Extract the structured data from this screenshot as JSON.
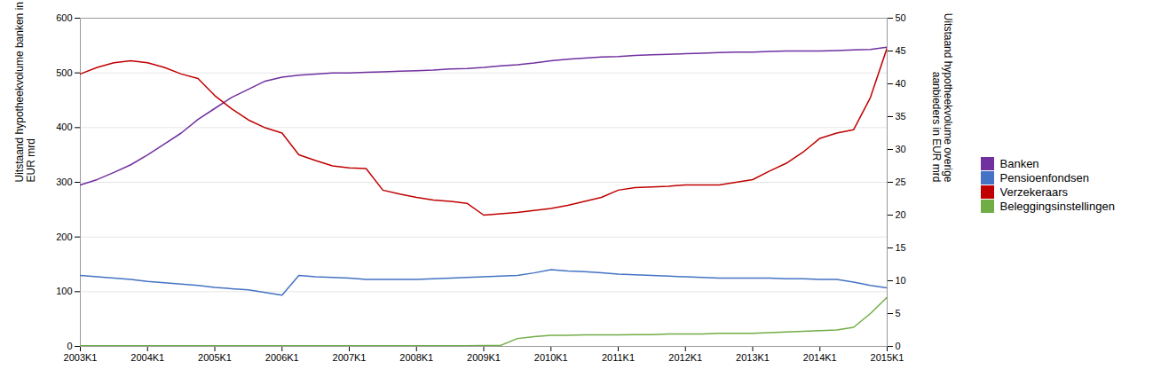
{
  "chart_data": {
    "type": "line",
    "categories": [
      "2003K1",
      null,
      null,
      null,
      "2004K1",
      null,
      null,
      null,
      "2005K1",
      null,
      null,
      null,
      "2006K1",
      null,
      null,
      null,
      "2007K1",
      null,
      null,
      null,
      "2008K1",
      null,
      null,
      null,
      "2009K1",
      null,
      null,
      null,
      "2010K1",
      null,
      null,
      null,
      "2011K1",
      null,
      null,
      null,
      "2012K1",
      null,
      null,
      null,
      "2013K1",
      null,
      null,
      null,
      "2014K1",
      null,
      null,
      null,
      "2015K1"
    ],
    "series": [
      {
        "name": "Banken",
        "color": "#7030A0",
        "values": [
          295,
          305,
          318,
          332,
          350,
          370,
          390,
          415,
          435,
          455,
          470,
          485,
          492,
          496,
          498,
          500,
          500,
          501,
          502,
          503,
          504,
          505,
          507,
          508,
          510,
          513,
          515,
          518,
          522,
          525,
          527,
          529,
          530,
          532,
          533,
          534,
          535,
          536,
          537,
          538,
          538,
          539,
          540,
          540,
          540,
          541,
          542,
          543,
          547
        ]
      },
      {
        "name": "Pensioenfondsen",
        "color": "#4472C4",
        "axis": "y2",
        "values": [
          10.8,
          10.6,
          10.4,
          10.2,
          9.9,
          9.7,
          9.5,
          9.3,
          9.0,
          8.8,
          8.6,
          8.2,
          7.8,
          10.8,
          10.6,
          10.5,
          10.4,
          10.2,
          10.2,
          10.2,
          10.2,
          10.3,
          10.4,
          10.5,
          10.6,
          10.7,
          10.8,
          11.2,
          11.7,
          11.5,
          11.4,
          11.2,
          11.0,
          10.9,
          10.8,
          10.7,
          10.6,
          10.5,
          10.4,
          10.4,
          10.4,
          10.4,
          10.3,
          10.3,
          10.2,
          10.2,
          9.8,
          9.3,
          8.9
        ]
      },
      {
        "name": "Verzekeraars",
        "color": "#C00000",
        "axis": "y2",
        "values": [
          41.5,
          42.5,
          43.2,
          43.5,
          43.2,
          42.5,
          41.5,
          40.8,
          38.2,
          36.2,
          34.5,
          33.3,
          32.5,
          29.2,
          28.3,
          27.5,
          27.2,
          27.1,
          23.8,
          23.2,
          22.7,
          22.3,
          22.1,
          21.8,
          20.0,
          20.2,
          20.4,
          20.7,
          21.0,
          21.5,
          22.1,
          22.7,
          23.8,
          24.2,
          24.3,
          24.4,
          24.6,
          24.6,
          24.6,
          25.0,
          25.4,
          26.7,
          27.9,
          29.6,
          31.7,
          32.5,
          33.0,
          37.9,
          45.5
        ]
      },
      {
        "name": "Beleggingsinstellingen",
        "color": "#70AD47",
        "axis": "y2",
        "values": [
          0.1,
          0.1,
          0.1,
          0.1,
          0.1,
          0.1,
          0.1,
          0.1,
          0.1,
          0.1,
          0.1,
          0.1,
          0.1,
          0.1,
          0.1,
          0.1,
          0.1,
          0.1,
          0.1,
          0.1,
          0.1,
          0.1,
          0.1,
          0.1,
          0.15,
          0.15,
          1.2,
          1.5,
          1.7,
          1.7,
          1.75,
          1.75,
          1.75,
          1.8,
          1.8,
          1.9,
          1.9,
          1.9,
          2.0,
          2.0,
          2.0,
          2.1,
          2.2,
          2.3,
          2.4,
          2.5,
          2.9,
          5.0,
          7.5
        ]
      }
    ],
    "ylabel": "Uitstaand hypotheekvolume banken in\nEUR mrd",
    "y2label": "Uitstaand hypotheekvolume overige\naanbieders in EUR mrd",
    "ylim": [
      0,
      600
    ],
    "yticks": [
      0,
      100,
      200,
      300,
      400,
      500,
      600
    ],
    "y2lim": [
      0,
      50
    ],
    "y2ticks": [
      0,
      5,
      10,
      15,
      20,
      25,
      30,
      35,
      40,
      45,
      50
    ],
    "grid": true,
    "legend": "right"
  }
}
